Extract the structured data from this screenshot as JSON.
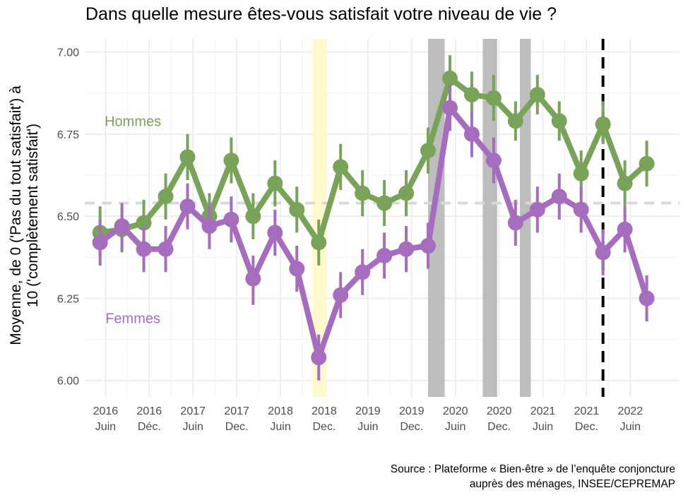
{
  "chart_data": {
    "type": "line",
    "title": "Dans quelle mesure êtes-vous satisfait votre niveau de vie ?",
    "ylabel_lines": [
      "Moyenne, de 0 ('Pas du tout satisfait') à",
      "10 ('complètement satisfait')"
    ],
    "xlabel": "",
    "ylim": [
      5.95,
      7.04
    ],
    "yticks": [
      6.0,
      6.25,
      6.5,
      6.75,
      7.0
    ],
    "ytick_labels": [
      "6.00",
      "6.25",
      "6.50",
      "6.75",
      "7.00"
    ],
    "xticks": [
      {
        "x": 0.125,
        "year": "2016",
        "period": "Juin"
      },
      {
        "x": 1.125,
        "year": "2016",
        "period": "Déc."
      },
      {
        "x": 2.125,
        "year": "2017",
        "period": "Juin"
      },
      {
        "x": 3.125,
        "year": "2017",
        "period": "Dec."
      },
      {
        "x": 4.125,
        "year": "2018",
        "period": "Juin"
      },
      {
        "x": 5.125,
        "year": "2018",
        "period": "Dec."
      },
      {
        "x": 6.125,
        "year": "2019",
        "period": "Juin"
      },
      {
        "x": 7.125,
        "year": "2019",
        "period": "Dec."
      },
      {
        "x": 8.125,
        "year": "2020",
        "period": "Juin"
      },
      {
        "x": 9.125,
        "year": "2020",
        "period": "Dec."
      },
      {
        "x": 10.125,
        "year": "2021",
        "period": "Juin"
      },
      {
        "x": 11.125,
        "year": "2021",
        "period": "Dec."
      },
      {
        "x": 12.125,
        "year": "2022",
        "period": "Juin"
      }
    ],
    "xlim": [
      -0.35,
      13.25
    ],
    "reference_line": {
      "y": 6.54,
      "style": "dashed",
      "color": "#d9d9d9"
    },
    "vertical_line": {
      "x": 11.5,
      "style": "dashed",
      "color": "#000000"
    },
    "shaded_periods": [
      {
        "x0": 4.85,
        "x1": 5.18,
        "color": "#fff9cc"
      },
      {
        "x0": 7.5,
        "x1": 7.88,
        "color": "#bdbdbd"
      },
      {
        "x0": 8.75,
        "x1": 9.08,
        "color": "#bdbdbd"
      },
      {
        "x0": 9.6,
        "x1": 9.85,
        "color": "#bdbdbd"
      }
    ],
    "series": [
      {
        "name": "Hommes",
        "color": "#7aa35a",
        "x": [
          0,
          0.5,
          1,
          1.5,
          2,
          2.5,
          3,
          3.5,
          4,
          4.5,
          5,
          5.5,
          6,
          6.5,
          7,
          7.5,
          8,
          8.5,
          9,
          9.5,
          10,
          10.5,
          11,
          11.5,
          12,
          12.5
        ],
        "values": [
          6.45,
          6.46,
          6.48,
          6.56,
          6.68,
          6.5,
          6.67,
          6.5,
          6.6,
          6.52,
          6.42,
          6.65,
          6.57,
          6.54,
          6.57,
          6.7,
          6.92,
          6.87,
          6.86,
          6.79,
          6.87,
          6.79,
          6.63,
          6.78,
          6.6,
          6.66
        ],
        "lower": [
          6.38,
          6.39,
          6.41,
          6.49,
          6.61,
          6.43,
          6.6,
          6.43,
          6.53,
          6.45,
          6.35,
          6.58,
          6.5,
          6.47,
          6.5,
          6.63,
          6.86,
          6.81,
          6.79,
          6.73,
          6.81,
          6.73,
          6.56,
          6.72,
          6.53,
          6.59
        ],
        "upper": [
          6.53,
          6.53,
          6.55,
          6.63,
          6.75,
          6.57,
          6.74,
          6.57,
          6.67,
          6.59,
          6.49,
          6.72,
          6.64,
          6.61,
          6.64,
          6.77,
          6.99,
          6.94,
          6.93,
          6.85,
          6.93,
          6.85,
          6.7,
          6.85,
          6.67,
          6.73
        ]
      },
      {
        "name": "Femmes",
        "color": "#a66dbf",
        "x": [
          0,
          0.5,
          1,
          1.5,
          2,
          2.5,
          3,
          3.5,
          4,
          4.5,
          5,
          5.5,
          6,
          6.5,
          7,
          7.5,
          8,
          8.5,
          9,
          9.5,
          10,
          10.5,
          11,
          11.5,
          12,
          12.5
        ],
        "values": [
          6.42,
          6.47,
          6.4,
          6.4,
          6.53,
          6.47,
          6.49,
          6.31,
          6.45,
          6.34,
          6.07,
          6.26,
          6.33,
          6.38,
          6.4,
          6.41,
          6.83,
          6.75,
          6.67,
          6.48,
          6.52,
          6.56,
          6.52,
          6.39,
          6.46,
          6.25
        ],
        "lower": [
          6.35,
          6.4,
          6.33,
          6.33,
          6.46,
          6.4,
          6.42,
          6.23,
          6.38,
          6.27,
          6.0,
          6.19,
          6.26,
          6.31,
          6.33,
          6.34,
          6.76,
          6.68,
          6.6,
          6.41,
          6.45,
          6.49,
          6.45,
          6.32,
          6.39,
          6.18
        ],
        "upper": [
          6.49,
          6.54,
          6.47,
          6.47,
          6.6,
          6.54,
          6.56,
          6.38,
          6.52,
          6.41,
          6.14,
          6.33,
          6.4,
          6.45,
          6.47,
          6.48,
          6.9,
          6.82,
          6.74,
          6.55,
          6.59,
          6.63,
          6.59,
          6.46,
          6.53,
          6.32
        ]
      }
    ],
    "series_labels": [
      {
        "text": "Hommes",
        "x": 0.75,
        "y": 6.79,
        "color": "#7aa35a"
      },
      {
        "text": "Femmes",
        "x": 0.75,
        "y": 6.19,
        "color": "#a66dbf"
      }
    ],
    "grid": true,
    "legend": "none"
  },
  "source_lines": [
    "Source : Plateforme « Bien-être » de l’enquête conjoncture",
    "auprès des ménages, INSEE/CEPREMAP"
  ]
}
